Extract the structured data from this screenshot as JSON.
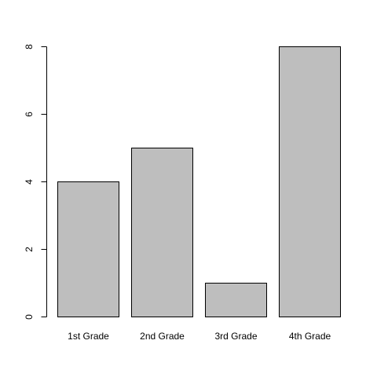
{
  "chart_data": {
    "type": "bar",
    "categories": [
      "1st Grade",
      "2nd Grade",
      "3rd Grade",
      "4th Grade"
    ],
    "values": [
      4,
      5,
      1,
      8
    ],
    "title": "",
    "xlabel": "",
    "ylabel": "",
    "ylim": [
      0,
      8
    ],
    "yticks": [
      0,
      2,
      4,
      6,
      8
    ],
    "grid": false,
    "bar_color": "#bebebe",
    "bar_border_color": "#000000"
  }
}
